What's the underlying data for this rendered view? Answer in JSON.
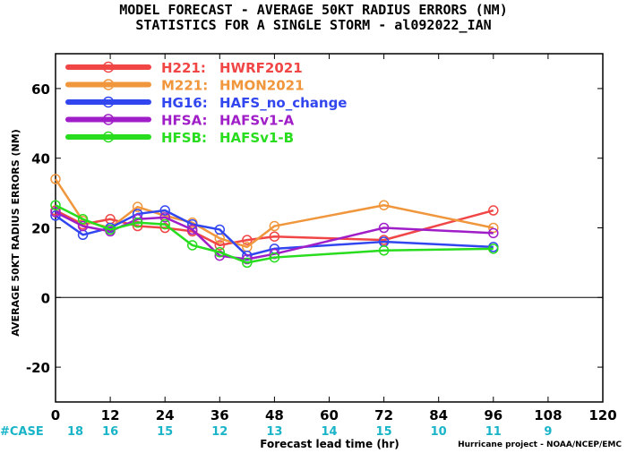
{
  "titles": {
    "line1": "MODEL FORECAST - AVERAGE 50KT RADIUS ERRORS (NM)",
    "line2": "STATISTICS FOR A SINGLE STORM - al092022_IAN"
  },
  "credit": "Hurricane project - NOAA/NCEP/EMC",
  "case_label": "#CASE",
  "colors": {
    "case_row": "#19b4c8",
    "zero_line": "#000000"
  },
  "chart_data": {
    "type": "line",
    "xlabel": "Forecast lead time (hr)",
    "ylabel": "AVERAGE 50KT RADIUS ERRORS (NM)",
    "xlim": [
      0,
      120
    ],
    "ylim": [
      -30,
      70
    ],
    "xticks": [
      0,
      12,
      24,
      36,
      48,
      60,
      72,
      84,
      96,
      108,
      120
    ],
    "yticks": [
      -20,
      0,
      20,
      40,
      60
    ],
    "grid": false,
    "legend_position": "top-left",
    "cases": [
      {
        "x": 0,
        "n": "18"
      },
      {
        "x": 12,
        "n": "16"
      },
      {
        "x": 24,
        "n": "15"
      },
      {
        "x": 36,
        "n": "12"
      },
      {
        "x": 48,
        "n": "13"
      },
      {
        "x": 60,
        "n": "14"
      },
      {
        "x": 72,
        "n": "15"
      },
      {
        "x": 84,
        "n": "10"
      },
      {
        "x": 96,
        "n": "11"
      },
      {
        "x": 108,
        "n": "9"
      }
    ],
    "series": [
      {
        "code": "H221:",
        "name": "HWRF2021",
        "color": "#f04646",
        "x": [
          0,
          6,
          12,
          18,
          24,
          30,
          36,
          42,
          48,
          72,
          96
        ],
        "y": [
          25.0,
          21.0,
          22.5,
          20.5,
          20.0,
          19.0,
          15.0,
          16.5,
          17.5,
          16.5,
          25.0
        ]
      },
      {
        "code": "M221:",
        "name": "HMON2021",
        "color": "#f0963c",
        "x": [
          0,
          6,
          12,
          18,
          24,
          30,
          36,
          42,
          48,
          72,
          96
        ],
        "y": [
          34.0,
          22.0,
          20.0,
          26.0,
          23.5,
          21.5,
          17.0,
          14.5,
          20.5,
          26.5,
          20.0
        ]
      },
      {
        "code": "HG16:",
        "name": "HAFS_no_change",
        "color": "#3246f0",
        "x": [
          0,
          6,
          12,
          18,
          24,
          30,
          36,
          42,
          48,
          72,
          96
        ],
        "y": [
          23.5,
          18.0,
          20.0,
          24.0,
          25.0,
          21.0,
          19.5,
          12.0,
          14.0,
          16.0,
          14.5
        ]
      },
      {
        "code": "HFSA:",
        "name": "HAFSv1-A",
        "color": "#a01ec8",
        "x": [
          0,
          6,
          12,
          18,
          24,
          30,
          36,
          42,
          48,
          72,
          96
        ],
        "y": [
          24.5,
          20.5,
          19.0,
          22.5,
          23.0,
          19.5,
          12.0,
          11.0,
          12.5,
          20.0,
          18.5
        ]
      },
      {
        "code": "HFSB:",
        "name": "HAFSv1-B",
        "color": "#28dc1e",
        "x": [
          0,
          6,
          12,
          18,
          24,
          30,
          36,
          42,
          48,
          72,
          96
        ],
        "y": [
          26.5,
          22.5,
          19.5,
          21.5,
          21.0,
          15.0,
          13.0,
          10.0,
          11.5,
          13.5,
          14.0
        ]
      }
    ]
  }
}
